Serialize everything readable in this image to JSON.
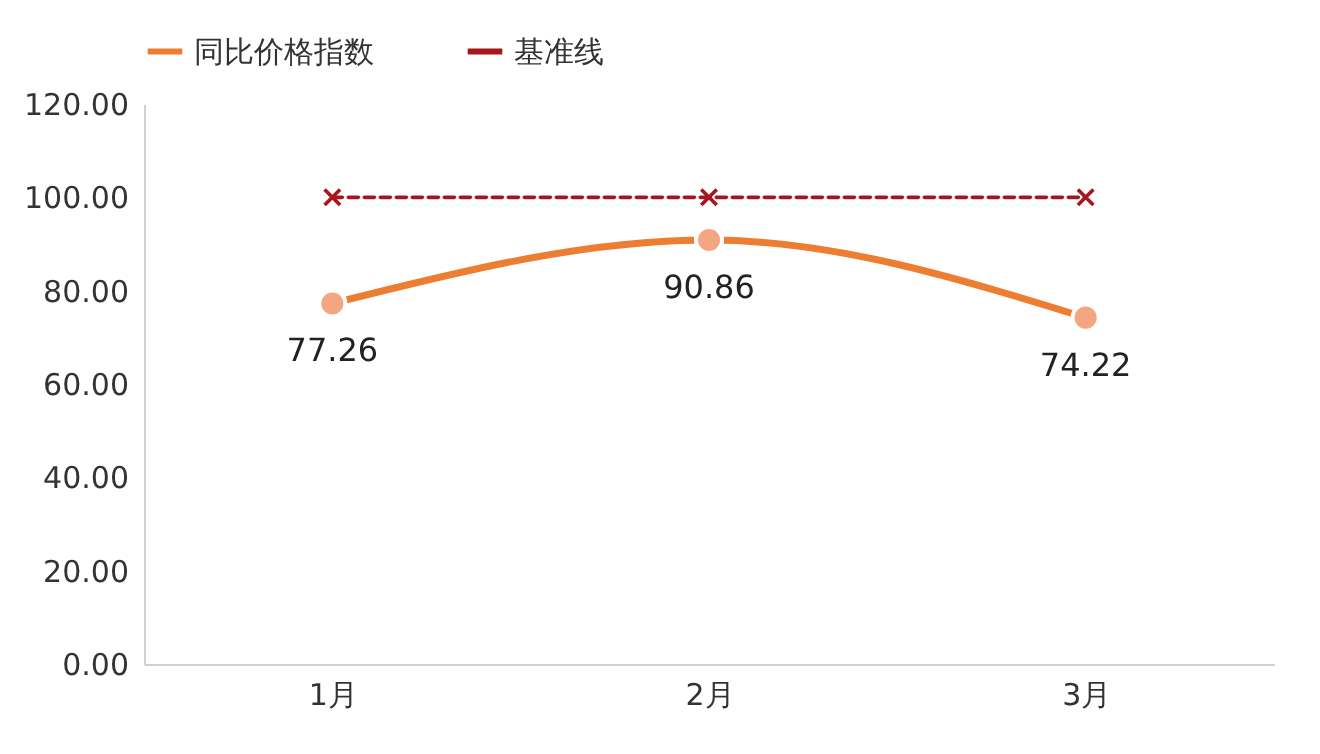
{
  "chart_data": {
    "type": "line",
    "categories": [
      "1月",
      "2月",
      "3月"
    ],
    "series": [
      {
        "name": "同比价格指数",
        "color": "#ed7d31",
        "values": [
          77.26,
          90.86,
          74.22
        ],
        "marker": "circle",
        "line_style": "solid",
        "value_labels": [
          "77.26",
          "90.86",
          "74.22"
        ]
      },
      {
        "name": "基准线",
        "color": "#a5161d",
        "values": [
          100,
          100,
          100
        ],
        "marker": "cross",
        "line_style": "dashed"
      }
    ],
    "ylim": [
      0,
      120
    ],
    "yticks": [
      {
        "value": 0,
        "label": "0.00"
      },
      {
        "value": 20,
        "label": "20.00"
      },
      {
        "value": 40,
        "label": "40.00"
      },
      {
        "value": 60,
        "label": "60.00"
      },
      {
        "value": 80,
        "label": "80.00"
      },
      {
        "value": 100,
        "label": "100.00"
      },
      {
        "value": 120,
        "label": "120.00"
      }
    ],
    "grid": false,
    "legend": "top"
  }
}
